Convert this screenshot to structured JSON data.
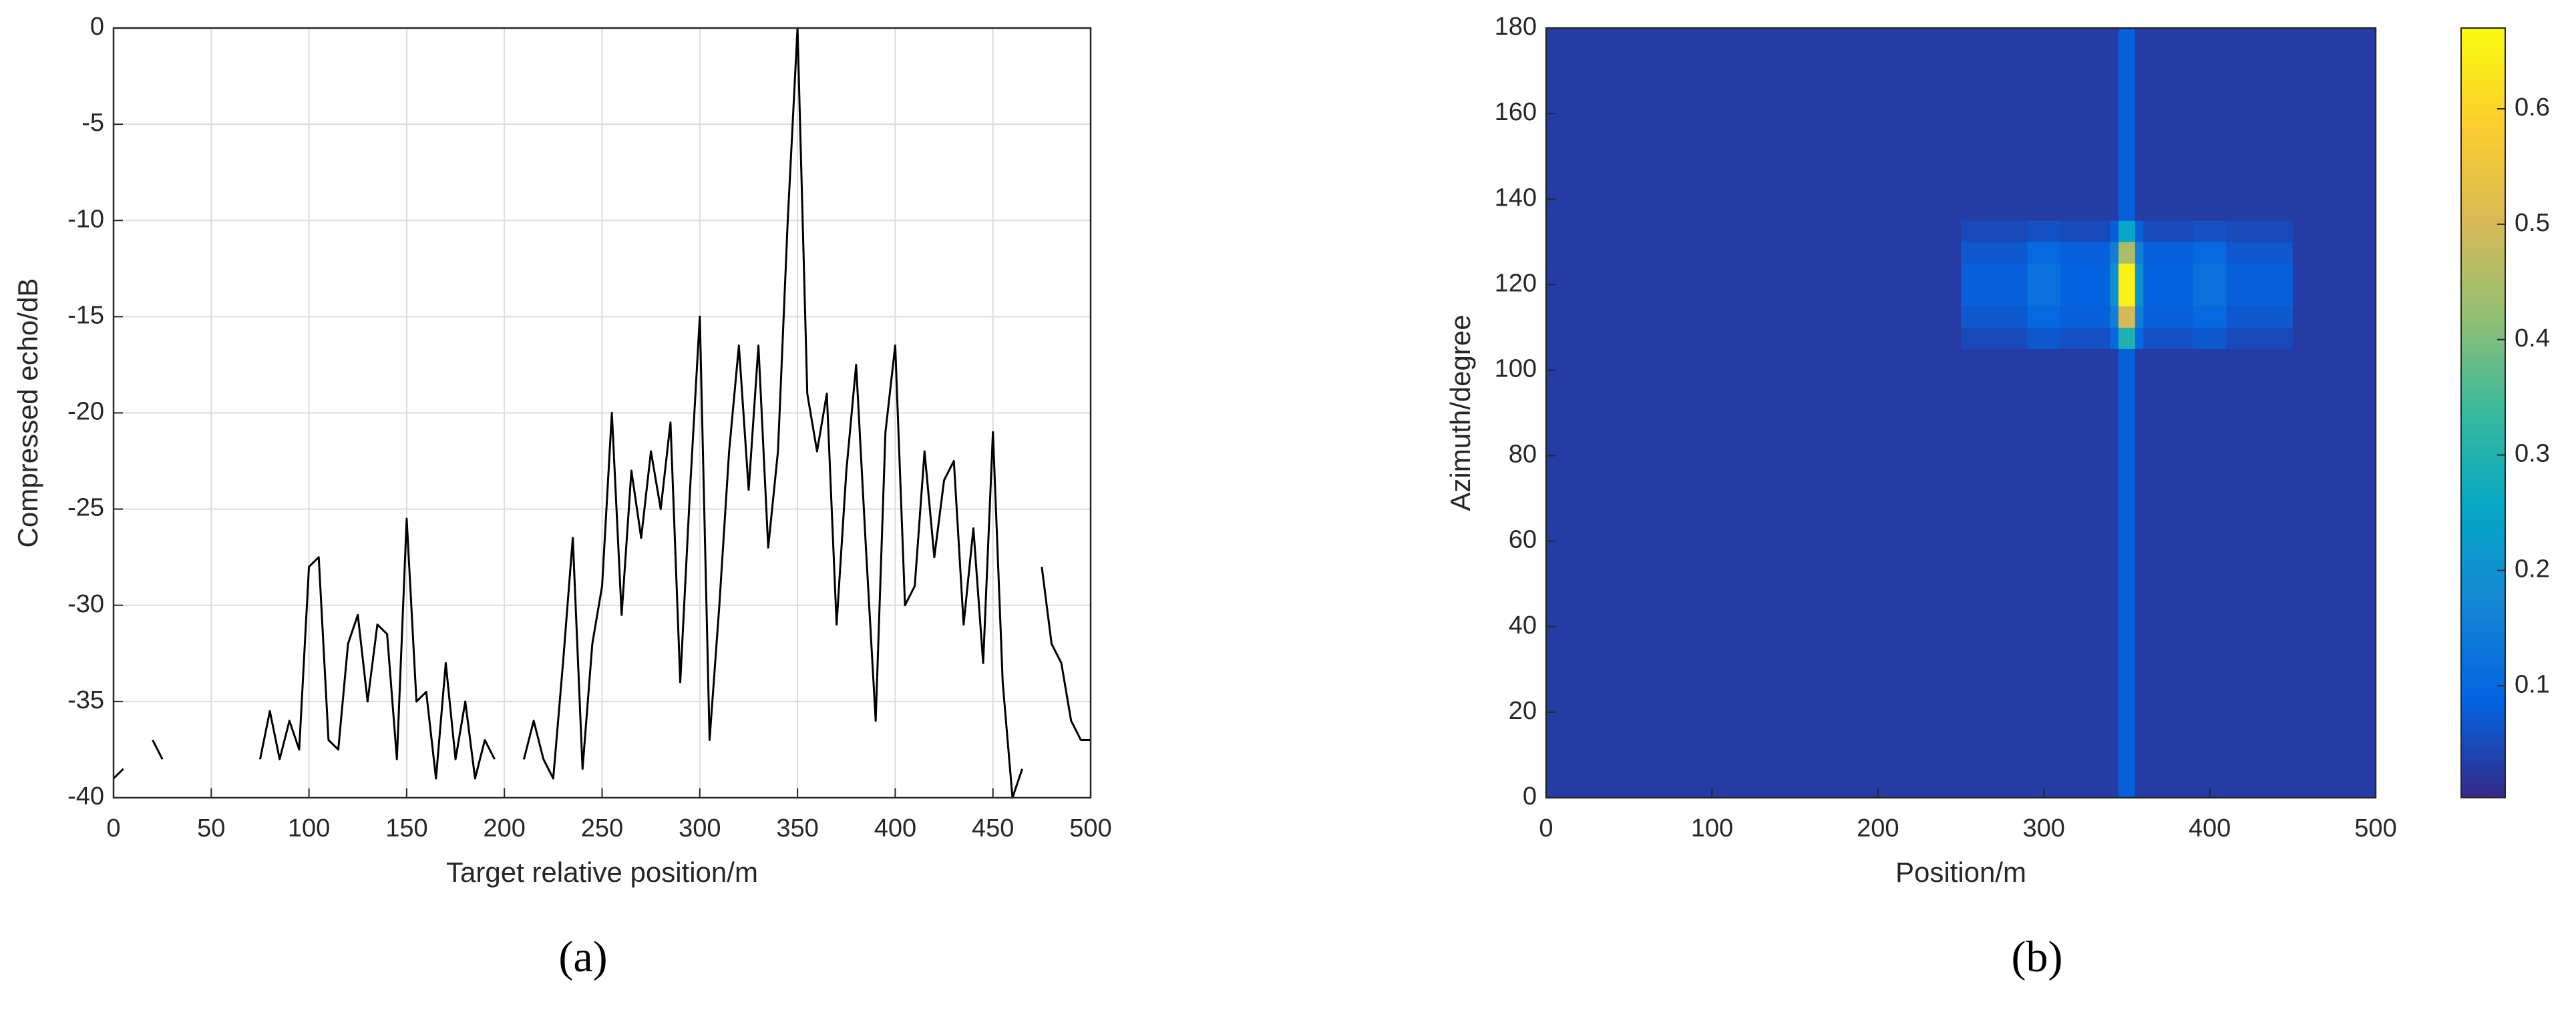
{
  "chart_data": [
    {
      "type": "line",
      "caption": "(a)",
      "xlabel": "Target relative position/m",
      "ylabel": "Compressed echo/dB",
      "x": [
        0,
        5,
        10,
        15,
        20,
        25,
        30,
        35,
        40,
        45,
        50,
        55,
        60,
        65,
        70,
        75,
        80,
        85,
        90,
        95,
        100,
        105,
        110,
        115,
        120,
        125,
        130,
        135,
        140,
        145,
        150,
        155,
        160,
        165,
        170,
        175,
        180,
        185,
        190,
        195,
        200,
        205,
        210,
        215,
        220,
        225,
        230,
        235,
        240,
        245,
        250,
        255,
        260,
        265,
        270,
        275,
        280,
        285,
        290,
        295,
        300,
        305,
        310,
        315,
        320,
        325,
        330,
        335,
        340,
        345,
        350,
        355,
        360,
        365,
        370,
        375,
        380,
        385,
        390,
        395,
        400,
        405,
        410,
        415,
        420,
        425,
        430,
        435,
        440,
        445,
        450,
        455,
        460,
        465,
        470,
        475,
        480,
        485,
        490,
        495,
        500
      ],
      "series": [
        {
          "color": "#000000",
          "values": [
            -39,
            -38.5,
            null,
            null,
            -37,
            -38,
            null,
            null,
            null,
            null,
            null,
            null,
            null,
            null,
            null,
            -38,
            -35.5,
            -38,
            -36,
            -37.5,
            -28,
            -27.5,
            -37,
            -37.5,
            -32,
            -30.5,
            -35,
            -31,
            -31.5,
            -38,
            -25.5,
            -35,
            -34.5,
            -39,
            -33,
            -38,
            -35,
            -39,
            -37,
            -38,
            null,
            null,
            -38,
            -36,
            -38,
            -39,
            -33,
            -26.5,
            -38.5,
            -32,
            -29,
            -20,
            -30.5,
            -23,
            -26.5,
            -22,
            -25,
            -20.5,
            -34,
            -24,
            -15,
            -37,
            -30,
            -22,
            -16.5,
            -24,
            -16.5,
            -27,
            -22,
            -10,
            0,
            -19,
            -22,
            -19,
            -31,
            -23,
            -17.5,
            -27,
            -36,
            -21,
            -16.5,
            -30,
            -29,
            -22,
            -27.5,
            -23.5,
            -22.5,
            -31,
            -26,
            -33,
            -21,
            -34,
            -40,
            -38.5,
            null,
            -28,
            -32,
            -33,
            -36,
            -37,
            -37
          ]
        }
      ],
      "xlim": [
        0,
        500
      ],
      "xticks": [
        0,
        50,
        100,
        150,
        200,
        250,
        300,
        350,
        400,
        450,
        500
      ],
      "ylim": [
        -40,
        0
      ],
      "yticks": [
        -40,
        -35,
        -30,
        -25,
        -20,
        -15,
        -10,
        -5,
        0
      ],
      "grid": true
    },
    {
      "type": "heatmap",
      "caption": "(b)",
      "xlabel": "Position/m",
      "ylabel": "Azimuth/degree",
      "colormap": "parula",
      "xbins": [
        0,
        250,
        290,
        310,
        340,
        345,
        355,
        360,
        390,
        410,
        450,
        500
      ],
      "ybins": [
        0,
        105,
        110,
        115,
        125,
        130,
        135,
        180
      ],
      "values": [
        [
          0.03,
          0.03,
          0.03,
          0.03,
          0.03,
          0.08,
          0.03,
          0.03,
          0.03,
          0.03,
          0.03
        ],
        [
          0.03,
          0.05,
          0.07,
          0.06,
          0.1,
          0.3,
          0.1,
          0.06,
          0.07,
          0.05,
          0.03
        ],
        [
          0.03,
          0.07,
          0.1,
          0.08,
          0.15,
          0.5,
          0.15,
          0.08,
          0.1,
          0.07,
          0.03
        ],
        [
          0.03,
          0.08,
          0.12,
          0.09,
          0.2,
          0.65,
          0.2,
          0.09,
          0.12,
          0.08,
          0.03
        ],
        [
          0.03,
          0.07,
          0.1,
          0.08,
          0.15,
          0.45,
          0.15,
          0.08,
          0.1,
          0.07,
          0.03
        ],
        [
          0.03,
          0.05,
          0.06,
          0.05,
          0.08,
          0.25,
          0.08,
          0.05,
          0.06,
          0.05,
          0.03
        ],
        [
          0.03,
          0.03,
          0.03,
          0.03,
          0.03,
          0.08,
          0.03,
          0.03,
          0.03,
          0.03,
          0.03
        ]
      ],
      "xlim": [
        0,
        500
      ],
      "xticks": [
        0,
        100,
        200,
        300,
        400,
        500
      ],
      "ylim": [
        0,
        180
      ],
      "yticks": [
        0,
        20,
        40,
        60,
        80,
        100,
        120,
        140,
        160,
        180
      ],
      "grid": false,
      "clim": [
        0.003,
        0.67
      ],
      "cticks": [
        0.1,
        0.2,
        0.3,
        0.4,
        0.5,
        0.6
      ]
    }
  ]
}
